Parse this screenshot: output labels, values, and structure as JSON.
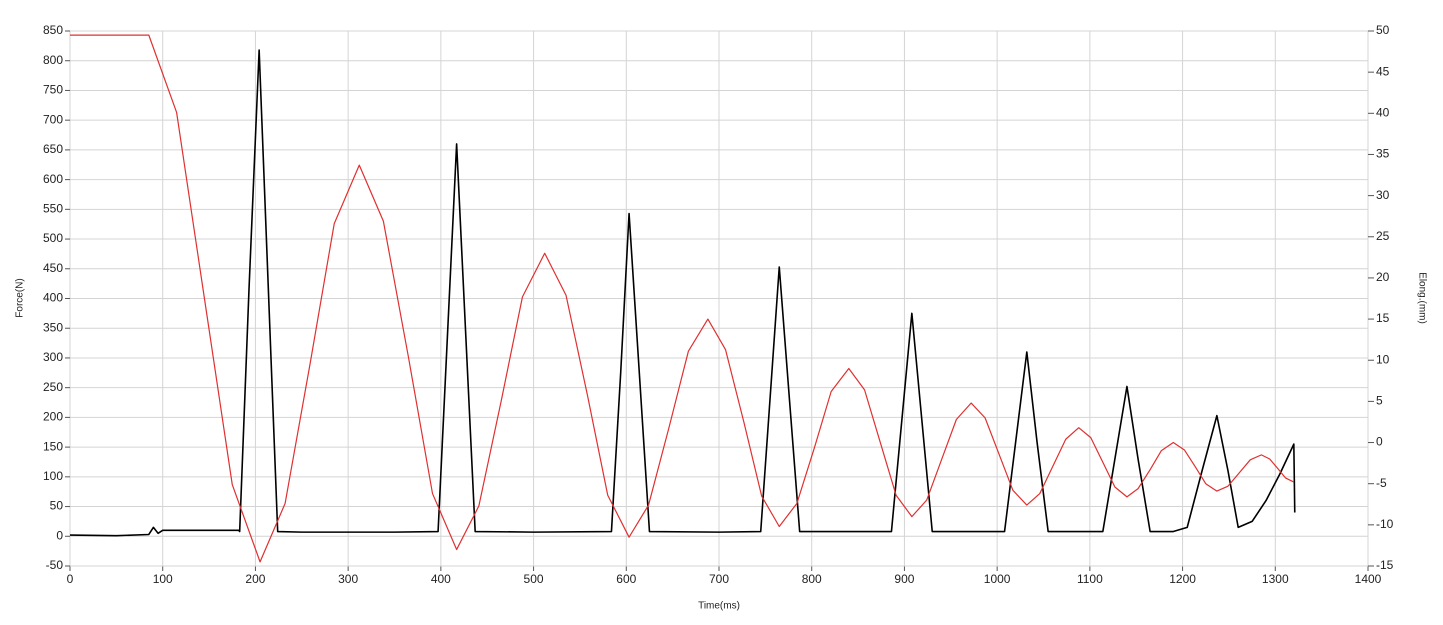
{
  "chart_data": {
    "type": "line",
    "xlabel": "Time(ms)",
    "ylabel": "Force(N)",
    "y2label": "Elong.(mm)",
    "xlim": [
      0,
      1400
    ],
    "xticks": [
      0,
      100,
      200,
      300,
      400,
      500,
      600,
      700,
      800,
      900,
      1000,
      1100,
      1200,
      1300,
      1400
    ],
    "ylim": [
      -50,
      850
    ],
    "yticks": [
      -50,
      0,
      50,
      100,
      150,
      200,
      250,
      300,
      350,
      400,
      450,
      500,
      550,
      600,
      650,
      700,
      750,
      800,
      850
    ],
    "y2lim": [
      -15,
      50
    ],
    "y2ticks": [
      -15,
      -10,
      -5,
      0,
      5,
      10,
      15,
      20,
      25,
      30,
      35,
      40,
      45,
      50
    ],
    "grid": true,
    "series": [
      {
        "color": "#000000",
        "x": [
          0,
          50,
          85,
          90,
          95,
          100,
          150,
          182,
          183,
          193,
          204,
          214,
          224,
          250,
          300,
          350,
          397,
          407,
          417,
          427,
          437,
          500,
          584,
          594,
          603,
          614,
          625,
          700,
          745,
          755,
          765,
          776,
          787,
          850,
          886,
          897,
          908,
          919,
          930,
          1008,
          1020,
          1032,
          1043,
          1055,
          1114,
          1127,
          1140,
          1152,
          1165,
          1190,
          1205,
          1221,
          1237,
          1249,
          1260,
          1275,
          1290,
          1305,
          1320,
          1321
        ],
        "values": [
          2,
          1,
          3,
          15,
          5,
          10,
          10,
          10,
          8,
          413,
          818,
          413,
          8,
          7,
          7,
          7,
          8,
          334,
          660,
          334,
          8,
          7,
          8,
          276,
          543,
          276,
          8,
          7,
          8,
          230,
          453,
          230,
          8,
          8,
          8,
          192,
          375,
          192,
          8,
          8,
          159,
          310,
          159,
          8,
          8,
          130,
          252,
          130,
          8,
          8,
          15,
          110,
          203,
          110,
          15,
          25,
          60,
          105,
          155,
          40
        ]
      },
      {
        "color": "#e03030",
        "axis": "y2",
        "x": [
          0,
          85,
          115,
          145,
          175,
          205,
          232,
          259,
          285,
          312,
          338,
          365,
          391,
          417,
          441,
          465,
          488,
          512,
          535,
          558,
          580,
          603,
          624,
          646,
          667,
          688,
          707,
          727,
          746,
          765,
          784,
          803,
          821,
          840,
          857,
          874,
          891,
          908,
          924,
          940,
          956,
          972,
          987,
          1002,
          1017,
          1032,
          1046,
          1060,
          1074,
          1088,
          1101,
          1114,
          1127,
          1140,
          1152,
          1165,
          1177,
          1190,
          1202,
          1214,
          1225,
          1237,
          1249,
          1261,
          1273,
          1285,
          1294,
          1303,
          1311,
          1320
        ],
        "values": [
          49.5,
          49.5,
          40.1,
          17.5,
          -5.1,
          -14.5,
          -7.4,
          9.6,
          26.6,
          33.7,
          26.9,
          10.4,
          -6.2,
          -13,
          -7.7,
          5.0,
          17.7,
          23,
          17.9,
          5.8,
          -6.4,
          -11.5,
          -7.6,
          1.8,
          11.1,
          15,
          11.3,
          2.4,
          -6.5,
          -10.2,
          -7.4,
          -0.6,
          6.2,
          9,
          6.4,
          0,
          -6.4,
          -9,
          -7.0,
          -2.1,
          2.8,
          4.8,
          3.0,
          -1.4,
          -5.8,
          -7.6,
          -6.2,
          -2.9,
          0.4,
          1.8,
          0.6,
          -2.4,
          -5.4,
          -6.6,
          -5.6,
          -3.3,
          -1.0,
          0,
          -0.9,
          -3.0,
          -5.0,
          -5.9,
          -5.3,
          -3.7,
          -2.1,
          -1.5,
          -2.0,
          -3.2,
          -4.3,
          -4.8
        ]
      }
    ]
  }
}
